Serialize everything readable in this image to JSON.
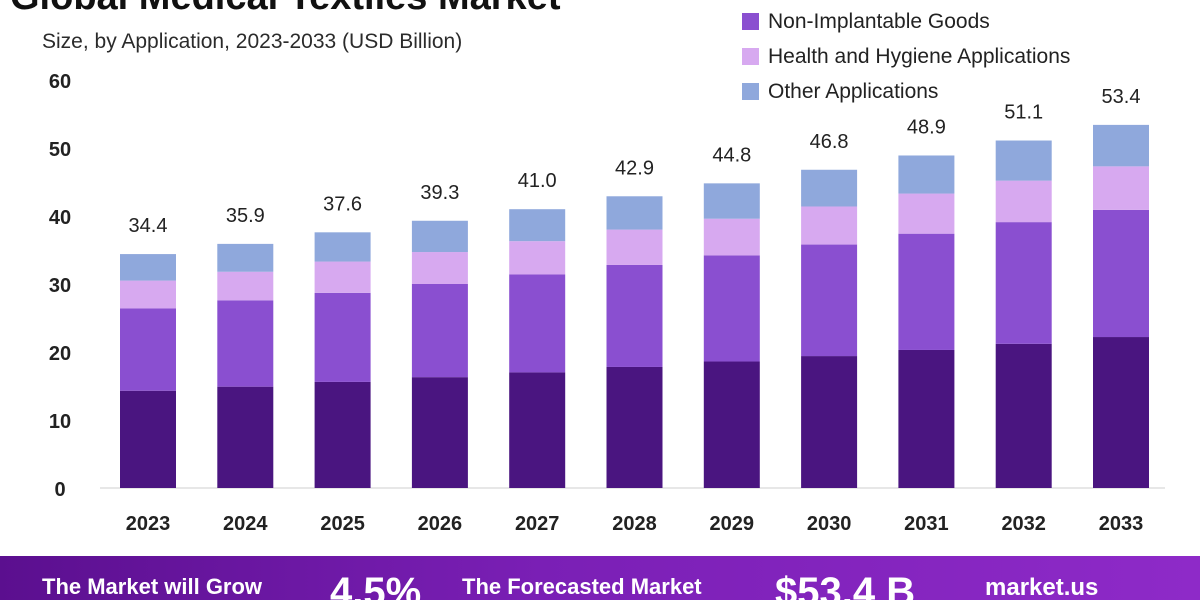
{
  "header": {
    "title": "Global Medical Textiles Market",
    "subtitle": "Size, by Application, 2023-2033 (USD Billion)"
  },
  "legend": [
    {
      "label": "Non-Implantable Goods",
      "color": "#8a4fd0"
    },
    {
      "label": "Health and Hygiene Applications",
      "color": "#d7a9f0"
    },
    {
      "label": "Other Applications",
      "color": "#8fa8dc"
    }
  ],
  "chart_data": {
    "type": "bar",
    "stacked": true,
    "title": "Global Medical Textiles Market",
    "subtitle": "Size, by Application, 2023-2033 (USD Billion)",
    "xlabel": "",
    "ylabel": "",
    "ylim": [
      0,
      60
    ],
    "yticks": [
      0,
      10,
      20,
      30,
      40,
      50,
      60
    ],
    "categories": [
      "2023",
      "2024",
      "2025",
      "2026",
      "2027",
      "2028",
      "2029",
      "2030",
      "2031",
      "2032",
      "2033"
    ],
    "totals": [
      34.4,
      35.9,
      37.6,
      39.3,
      41.0,
      42.9,
      44.8,
      46.8,
      48.9,
      51.1,
      53.4
    ],
    "total_labels": [
      "34.4",
      "35.9",
      "37.6",
      "39.3",
      "41.0",
      "42.9",
      "44.8",
      "46.8",
      "48.9",
      "51.1",
      "53.4"
    ],
    "series": [
      {
        "name": "",
        "color": "#4a1580",
        "values": [
          14.3,
          14.9,
          15.6,
          16.3,
          17.0,
          17.8,
          18.6,
          19.4,
          20.3,
          21.2,
          22.2
        ]
      },
      {
        "name": "Non-Implantable Goods",
        "color": "#8a4fd0",
        "values": [
          12.1,
          12.7,
          13.1,
          13.7,
          14.4,
          15.0,
          15.6,
          16.4,
          17.1,
          17.9,
          18.7
        ]
      },
      {
        "name": "Health and Hygiene Applications",
        "color": "#d7a9f0",
        "values": [
          4.1,
          4.2,
          4.6,
          4.7,
          4.9,
          5.2,
          5.4,
          5.6,
          5.9,
          6.1,
          6.4
        ]
      },
      {
        "name": "Other Applications",
        "color": "#8fa8dc",
        "values": [
          3.9,
          4.1,
          4.3,
          4.6,
          4.7,
          4.9,
          5.2,
          5.4,
          5.6,
          5.9,
          6.1
        ]
      }
    ]
  },
  "banner": {
    "grow_text": "The Market will Grow",
    "cagr": "4.5%",
    "forecast_text": "The Forecasted Market",
    "forecast_value": "$53.4 B",
    "brand": "market.us"
  }
}
